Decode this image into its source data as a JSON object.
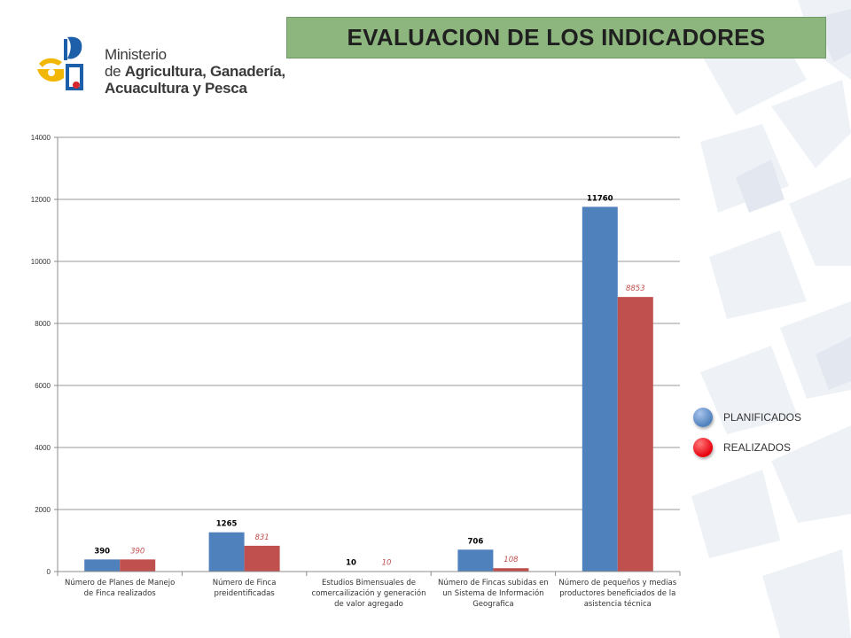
{
  "header": {
    "title": "EVALUACION DE LOS INDICADORES",
    "title_bg": "#8db67f"
  },
  "logo": {
    "line1": "Ministerio",
    "line2_pre": "de ",
    "line2_bold": "Agricultura, Ganadería,",
    "line3": "Acuacultura y Pesca"
  },
  "legend": {
    "items": [
      {
        "label": "PLANIFICADOS",
        "color": "#4f81bd"
      },
      {
        "label": "REALIZADOS",
        "color": "#e8000d"
      }
    ]
  },
  "chart_data": {
    "type": "bar",
    "title": "",
    "xlabel": "",
    "ylabel": "",
    "ylim": [
      0,
      14000
    ],
    "yticks": [
      0,
      2000,
      4000,
      6000,
      8000,
      10000,
      12000,
      14000
    ],
    "grid": true,
    "legend_position": "right",
    "categories": [
      [
        "Número de Planes de Manejo",
        "de Finca realizados"
      ],
      [
        "Número de Finca",
        "preidentificadas"
      ],
      [
        "Estudios Bimensuales de",
        "comercailización y generación",
        "de valor agregado"
      ],
      [
        "Número de Fincas subidas en",
        "un Sistema de Información",
        "Geografica"
      ],
      [
        "Número  de pequeños y medias",
        "productores beneficiados de la",
        "asistencia técnica"
      ]
    ],
    "series": [
      {
        "name": "PLANIFICADOS",
        "color": "#4f81bd",
        "label_color": "#000000",
        "values": [
          390,
          1265,
          10,
          706,
          11760
        ]
      },
      {
        "name": "REALIZADOS",
        "color": "#c0504d",
        "label_color": "#c0504d",
        "values": [
          390,
          831,
          10,
          108,
          8853
        ]
      }
    ]
  }
}
